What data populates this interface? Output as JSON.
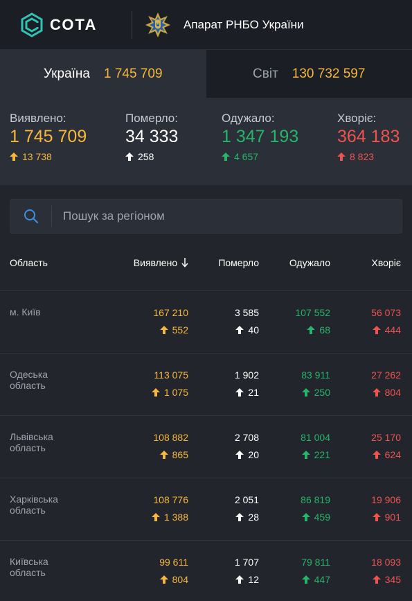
{
  "header": {
    "logo_text": "СОТА",
    "org_name": "Апарат РНБО України"
  },
  "tabs": [
    {
      "label": "Україна",
      "value": "1 745 709",
      "active": true
    },
    {
      "label": "Світ",
      "value": "130 732 597",
      "active": false
    }
  ],
  "summary": {
    "detected": {
      "label": "Виявлено:",
      "value": "1 745 709",
      "delta": "13 738",
      "color": "#f6b73c"
    },
    "died": {
      "label": "Померло:",
      "value": "34 333",
      "delta": "258",
      "color": "#ffffff"
    },
    "recovered": {
      "label": "Одужало:",
      "value": "1 347 193",
      "delta": "4 657",
      "color": "#26b56b"
    },
    "sick": {
      "label": "Хворіє:",
      "value": "364 183",
      "delta": "8 823",
      "color": "#ef5350"
    }
  },
  "search": {
    "placeholder": "Пошук за регіоном"
  },
  "table": {
    "headers": {
      "region": "Область",
      "detected": "Виявлено",
      "died": "Померло",
      "recovered": "Одужало",
      "sick": "Хворіє"
    },
    "rows": [
      {
        "region": "м. Київ",
        "detected": "167 210",
        "detected_delta": "552",
        "died": "3 585",
        "died_delta": "40",
        "recovered": "107 552",
        "recovered_delta": "68",
        "sick": "56 073",
        "sick_delta": "444"
      },
      {
        "region": "Одеська область",
        "detected": "113 075",
        "detected_delta": "1 075",
        "died": "1 902",
        "died_delta": "21",
        "recovered": "83 911",
        "recovered_delta": "250",
        "sick": "27 262",
        "sick_delta": "804"
      },
      {
        "region": "Львівська область",
        "detected": "108 882",
        "detected_delta": "865",
        "died": "2 708",
        "died_delta": "20",
        "recovered": "81 004",
        "recovered_delta": "221",
        "sick": "25 170",
        "sick_delta": "624"
      },
      {
        "region": "Харківська область",
        "detected": "108 776",
        "detected_delta": "1 388",
        "died": "2 051",
        "died_delta": "28",
        "recovered": "86 819",
        "recovered_delta": "459",
        "sick": "19 906",
        "sick_delta": "901"
      },
      {
        "region": "Київська область",
        "detected": "99 611",
        "detected_delta": "804",
        "died": "1 707",
        "died_delta": "12",
        "recovered": "79 811",
        "recovered_delta": "447",
        "sick": "18 093",
        "sick_delta": "345"
      }
    ]
  },
  "colors": {
    "accent_yellow": "#f6b73c",
    "green": "#26b56b",
    "red": "#ef5350",
    "icon_teal": "#2ec4b6"
  }
}
